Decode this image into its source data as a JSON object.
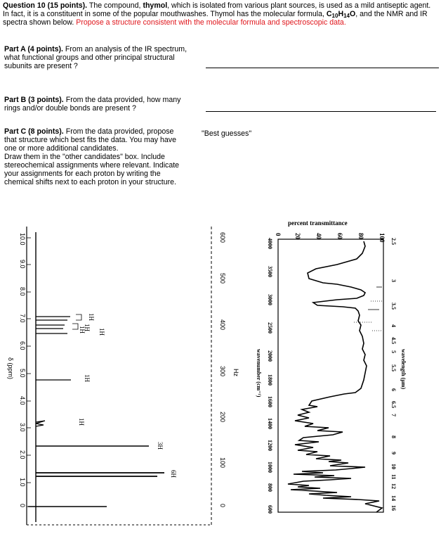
{
  "question": {
    "number": "Question 10 (15 points).",
    "intro_1": "The compound,",
    "compound": "thymol",
    "intro_2": ", which is isolated from various plant sources, is used as a mild antiseptic agent.  In fact, it is a constituent in some of the popular mouthwashes. Thymol has the molecular formula,",
    "formula_c": "C",
    "formula_c_sub": "10",
    "formula_h": "H",
    "formula_h_sub": "14",
    "formula_o": "O",
    "intro_3": ", and the NMR and IR spectra shown below.",
    "instruction": "Propose a structure consistent with the molecular formula and spectroscopic data."
  },
  "part_a": {
    "label": "Part A (4 points).",
    "text": "From an analysis of the IR spectrum, what functional groups and other principal structural subunits are present ?"
  },
  "part_b": {
    "label": "Part B (3 points).",
    "text": "From the data provided, how many rings and/or double bonds are present ?"
  },
  "part_c": {
    "label": "Part C (8 points).",
    "text_1": "From the data provided, propose that structure which best fits the data. You may have one or more additional candidates.",
    "text_2": "Draw them in the \"other candidates\" box. Include stereochemical assignments where relevant.  Indicate your assignments for each proton by writing the chemical shifts next to each proton in your structure."
  },
  "best_guesses": "\"Best guesses\"",
  "nmr": {
    "ppm_ticks": [
      "10.0",
      "9.0",
      "8.0",
      "7.0",
      "6.0",
      "5.0",
      "4.0",
      "3.0",
      "2.0",
      "1.0",
      "0"
    ],
    "hz_ticks": [
      "600",
      "500",
      "400",
      "300",
      "200",
      "100",
      "0"
    ],
    "ppm_label": "δ (ppm)",
    "hz_label": "Hz",
    "integrations": [
      "1H",
      "1H",
      "1H",
      "1H",
      "1H",
      "1H",
      "3H",
      "6H"
    ]
  },
  "ir": {
    "top_label": "percent transmittance",
    "pct_ticks": [
      "0",
      "20",
      "40",
      "60",
      "80",
      "100"
    ],
    "wavenumber_ticks": [
      "4000",
      "3500",
      "3000",
      "2500",
      "2000",
      "1800",
      "1600",
      "1400",
      "1200",
      "1000",
      "800",
      "600"
    ],
    "wavenumber_label": "wavenumber (cm⁻¹)",
    "wavelength_ticks": [
      "2.5",
      "3",
      "3.5",
      "4",
      "4.5",
      "5",
      "5.5",
      "6",
      "6.5",
      "7",
      "8",
      "9",
      "10",
      "11",
      "12",
      "14",
      "16"
    ],
    "wavelength_label": "wavelength (μm)"
  }
}
